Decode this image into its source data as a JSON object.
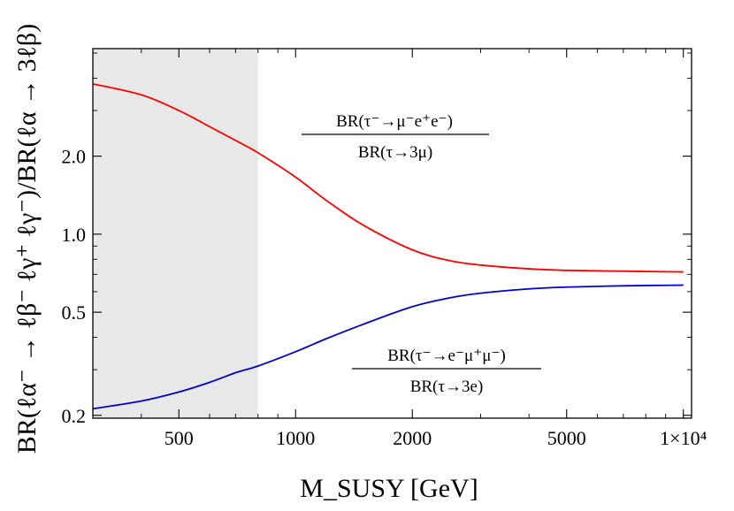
{
  "chart_data": {
    "type": "line",
    "xlabel": "M_SUSY [GeV]",
    "ylabel": "BR(ℓα⁻ → ℓβ⁻ ℓγ⁺ ℓγ⁻)/BR(ℓα → 3ℓβ)",
    "x_scale": "log",
    "y_scale": "log",
    "xlim": [
      300,
      10500
    ],
    "ylim": [
      0.195,
      5.2
    ],
    "x_ticks": [
      500,
      1000,
      2000,
      5000,
      10000
    ],
    "x_tick_labels": [
      "500",
      "1000",
      "2000",
      "5000",
      "1×10⁴"
    ],
    "y_ticks": [
      0.2,
      0.5,
      1.0,
      2.0
    ],
    "y_tick_labels": [
      "0.2",
      "0.5",
      "1.0",
      "2.0"
    ],
    "shaded_region": {
      "x_from": 300,
      "x_to": 800,
      "color": "#e8e8e8"
    },
    "grid": false,
    "series": [
      {
        "color": "#ff0000",
        "x": [
          300,
          400,
          500,
          600,
          700,
          800,
          1000,
          1200,
          1500,
          2000,
          2500,
          3000,
          4000,
          5000,
          7000,
          10000
        ],
        "y": [
          3.8,
          3.45,
          3.0,
          2.6,
          2.3,
          2.06,
          1.66,
          1.35,
          1.08,
          0.87,
          0.79,
          0.76,
          0.735,
          0.725,
          0.72,
          0.715
        ]
      },
      {
        "color": "#0000cc",
        "x": [
          300,
          400,
          500,
          600,
          700,
          800,
          1000,
          1200,
          1500,
          2000,
          2500,
          3000,
          4000,
          5000,
          7000,
          10000
        ],
        "y": [
          0.212,
          0.227,
          0.246,
          0.268,
          0.292,
          0.31,
          0.352,
          0.395,
          0.45,
          0.525,
          0.568,
          0.592,
          0.615,
          0.625,
          0.632,
          0.636
        ]
      }
    ],
    "annotations": [
      {
        "numerator": "BR(τ⁻→μ⁻e⁺e⁻)",
        "denominator": "BR(τ→3μ)"
      },
      {
        "numerator": "BR(τ⁻→e⁻μ⁺μ⁻)",
        "denominator": "BR(τ→3e)"
      }
    ]
  }
}
